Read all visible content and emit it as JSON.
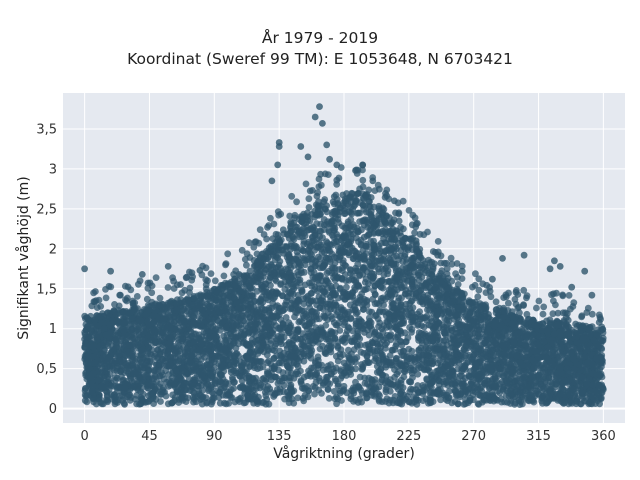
{
  "chart_data": {
    "type": "scatter",
    "title": "År 1979 - 2019",
    "subtitle": "Koordinat (Sweref 99 TM): E 1053648, N 6703421",
    "xlabel": "Vågriktning (grader)",
    "ylabel": "Signifikant våghöjd (m)",
    "xlim": [
      -15,
      375
    ],
    "ylim": [
      -0.18,
      3.95
    ],
    "xticks": [
      0,
      45,
      90,
      135,
      180,
      225,
      270,
      315,
      360
    ],
    "xtick_labels": [
      "0",
      "45",
      "90",
      "135",
      "180",
      "225",
      "270",
      "315",
      "360"
    ],
    "yticks": [
      0,
      0.5,
      1,
      1.5,
      2,
      2.5,
      3,
      3.5
    ],
    "ytick_labels": [
      "0",
      "0,5",
      "1",
      "1,5",
      "2",
      "2,5",
      "3",
      "3,5"
    ],
    "grid": true,
    "marker_color": "#2f566d",
    "plot_background": "#e5e9f0",
    "envelope": {
      "direction": [
        0,
        15,
        30,
        45,
        60,
        75,
        90,
        105,
        120,
        135,
        150,
        165,
        180,
        195,
        210,
        225,
        240,
        255,
        270,
        285,
        300,
        315,
        330,
        345,
        360
      ],
      "upper_height": [
        1.15,
        1.2,
        1.25,
        1.3,
        1.35,
        1.4,
        1.5,
        1.65,
        1.85,
        2.2,
        2.45,
        2.6,
        2.7,
        2.7,
        2.45,
        2.2,
        1.85,
        1.55,
        1.35,
        1.25,
        1.15,
        1.1,
        1.1,
        1.05,
        1.0
      ],
      "lower_height": 0.05
    },
    "outliers": [
      {
        "x": 0,
        "y": 1.75
      },
      {
        "x": 18,
        "y": 1.72
      },
      {
        "x": 40,
        "y": 1.68
      },
      {
        "x": 58,
        "y": 1.78
      },
      {
        "x": 80,
        "y": 1.73
      },
      {
        "x": 130,
        "y": 2.85
      },
      {
        "x": 135,
        "y": 3.33
      },
      {
        "x": 135,
        "y": 3.28
      },
      {
        "x": 134,
        "y": 3.05
      },
      {
        "x": 150,
        "y": 3.28
      },
      {
        "x": 155,
        "y": 3.15
      },
      {
        "x": 160,
        "y": 3.65
      },
      {
        "x": 163,
        "y": 3.78
      },
      {
        "x": 165,
        "y": 3.57
      },
      {
        "x": 168,
        "y": 3.3
      },
      {
        "x": 170,
        "y": 3.12
      },
      {
        "x": 175,
        "y": 3.05
      },
      {
        "x": 188,
        "y": 2.98
      },
      {
        "x": 193,
        "y": 3.05
      },
      {
        "x": 200,
        "y": 2.85
      },
      {
        "x": 215,
        "y": 2.6
      },
      {
        "x": 230,
        "y": 2.1
      },
      {
        "x": 245,
        "y": 1.92
      },
      {
        "x": 262,
        "y": 1.72
      },
      {
        "x": 283,
        "y": 1.62
      },
      {
        "x": 290,
        "y": 1.88
      },
      {
        "x": 305,
        "y": 1.92
      },
      {
        "x": 323,
        "y": 1.75
      },
      {
        "x": 326,
        "y": 1.85
      },
      {
        "x": 330,
        "y": 1.78
      },
      {
        "x": 338,
        "y": 1.52
      },
      {
        "x": 347,
        "y": 1.72
      },
      {
        "x": 352,
        "y": 1.42
      }
    ]
  }
}
